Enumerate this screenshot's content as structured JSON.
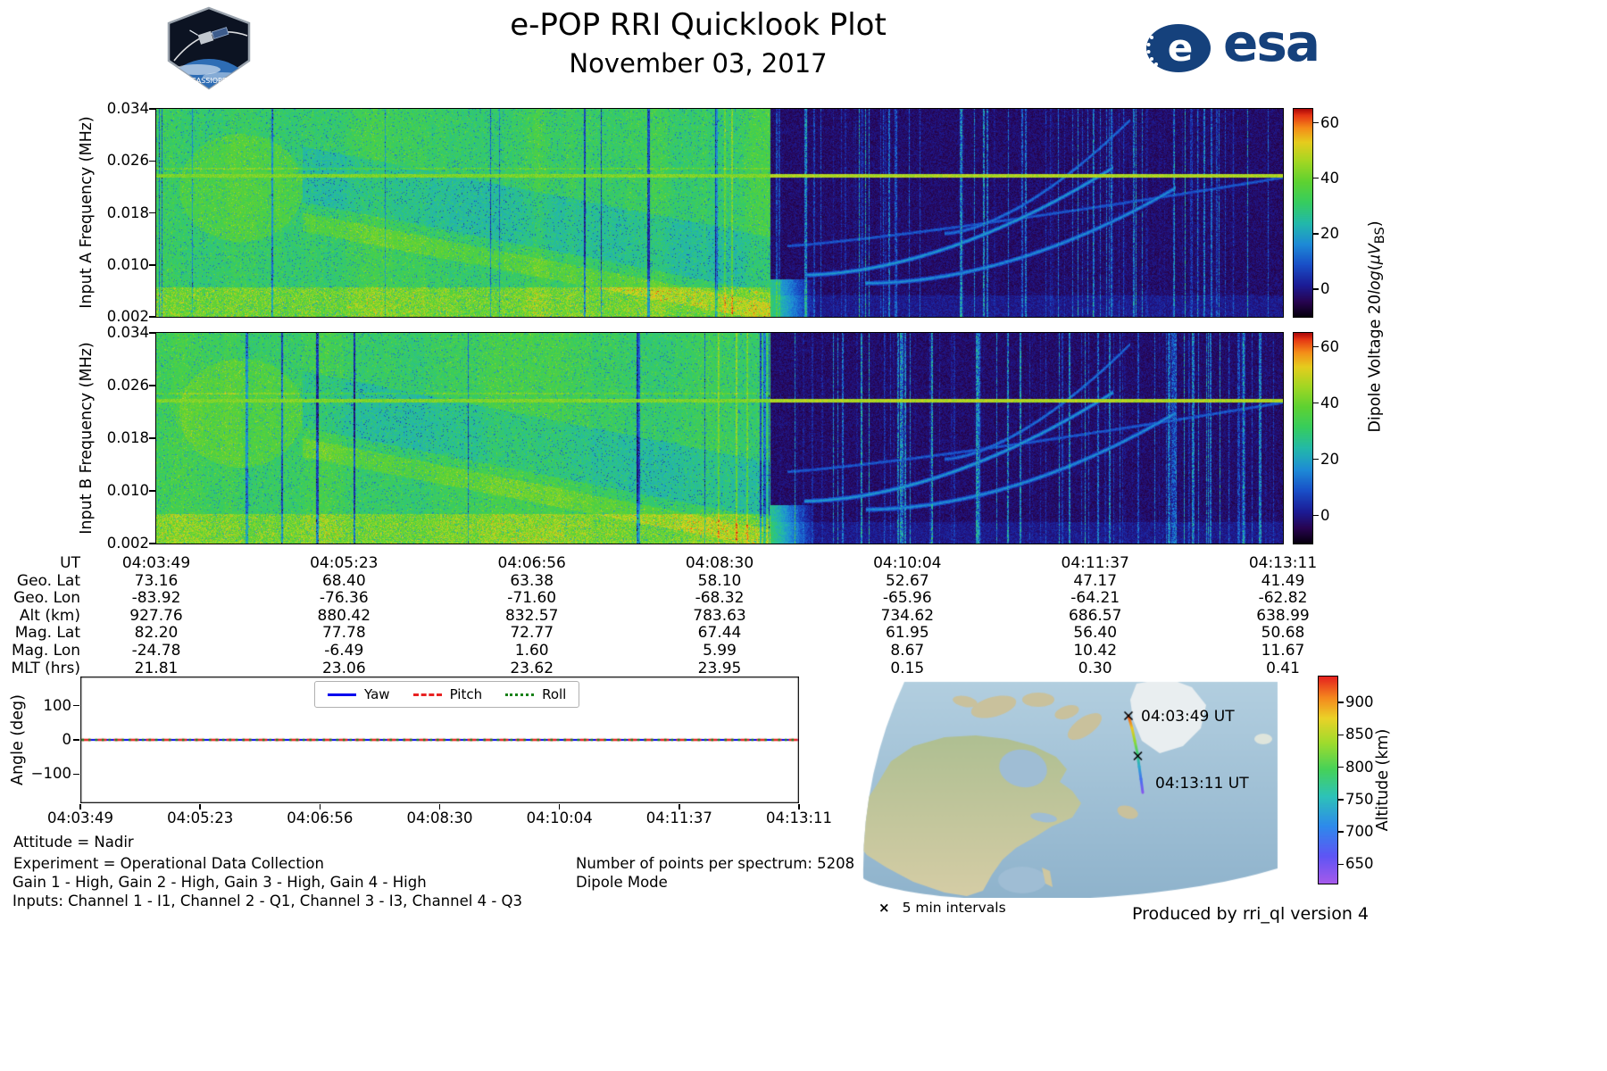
{
  "header": {
    "title": "e-POP RRI Quicklook Plot",
    "date": "November 03, 2017",
    "esa_wordmark": "esa",
    "patch_text": "CASSIOPE"
  },
  "colorbar_label": {
    "prefix": "Dipole Voltage 20",
    "log": "log",
    "open": "(",
    "muv": "μV",
    "sub": "BS",
    "close": ")"
  },
  "info": {
    "attitude": "Attitude = Nadir",
    "experiment": "Experiment = Operational Data Collection",
    "gains": "Gain 1 - High, Gain 2 - High, Gain 3 - High, Gain 4 - High",
    "inputs": "Inputs: Channel 1 - I1, Channel 2 - Q1, Channel 3 - I3, Channel 4 - Q3",
    "points_per_spectrum": "Number of points per spectrum: 5208",
    "mode": "Dipole Mode",
    "produced_by": "Produced by rri_ql version 4"
  },
  "chart_data": [
    {
      "id": "spectrogram_a",
      "type": "heatmap",
      "ylabel": "Input A Frequency (MHz)",
      "yticks": [
        "0.034",
        "0.026",
        "0.018",
        "0.010",
        "0.002"
      ],
      "ylim_mhz": [
        0.002,
        0.034
      ],
      "x_range_ut": [
        "04:03:49",
        "04:13:11"
      ],
      "colorbar_ticks": [
        60,
        40,
        20,
        0
      ],
      "colorbar_range": [
        -10,
        65
      ],
      "features": {
        "active_region_end_fraction": 0.545,
        "carrier_line_mhz": 0.0237,
        "description": "Broadband HF noise (~25-40 dB, green) until ~04:08:50 UT, then dark background with vertical interference streaks and rising ionogram traces; persistent carrier line near 0.024 MHz across full interval."
      }
    },
    {
      "id": "spectrogram_b",
      "type": "heatmap",
      "ylabel": "Input B Frequency (MHz)",
      "yticks": [
        "0.034",
        "0.026",
        "0.018",
        "0.010",
        "0.002"
      ],
      "ylim_mhz": [
        0.002,
        0.034
      ],
      "x_range_ut": [
        "04:03:49",
        "04:13:11"
      ],
      "colorbar_ticks": [
        60,
        40,
        20,
        0
      ],
      "colorbar_range": [
        -10,
        65
      ],
      "features": {
        "active_region_end_fraction": 0.545,
        "carrier_line_mhz": 0.0237,
        "description": "Same structure as Input A: bright broadband region, then dark region with streaks, carrier line near 0.024 MHz."
      }
    },
    {
      "id": "attitude_angles",
      "type": "line",
      "ylabel": "Angle (deg)",
      "x": [
        "04:03:49",
        "04:05:23",
        "04:06:56",
        "04:08:30",
        "04:10:04",
        "04:11:37",
        "04:13:11"
      ],
      "yticks": [
        100,
        0,
        -100
      ],
      "ytick_labels": [
        "100",
        "0",
        "−100"
      ],
      "ylim": [
        -185,
        185
      ],
      "legend_position": "top center",
      "series": [
        {
          "name": "Yaw",
          "values": [
            0,
            0,
            0,
            0,
            0,
            0,
            0
          ],
          "color": "#0000ee",
          "style": "solid"
        },
        {
          "name": "Pitch",
          "values": [
            0,
            0,
            0,
            0,
            0,
            0,
            0
          ],
          "color": "#e82222",
          "style": "dashed"
        },
        {
          "name": "Roll",
          "values": [
            0,
            0,
            0,
            0,
            0,
            0,
            0
          ],
          "color": "#178017",
          "style": "dotted"
        }
      ]
    },
    {
      "id": "ephemeris",
      "type": "table",
      "row_labels": [
        "UT",
        "Geo. Lat",
        "Geo. Lon",
        "Alt (km)",
        "Mag. Lat",
        "Mag. Lon",
        "MLT (hrs)"
      ],
      "columns": [
        [
          "04:03:49",
          "73.16",
          "-83.92",
          "927.76",
          "82.20",
          "-24.78",
          "21.81"
        ],
        [
          "04:05:23",
          "68.40",
          "-76.36",
          "880.42",
          "77.78",
          "-6.49",
          "23.06"
        ],
        [
          "04:06:56",
          "63.38",
          "-71.60",
          "832.57",
          "72.77",
          "1.60",
          "23.62"
        ],
        [
          "04:08:30",
          "58.10",
          "-68.32",
          "783.63",
          "67.44",
          "5.99",
          "23.95"
        ],
        [
          "04:10:04",
          "52.67",
          "-65.96",
          "734.62",
          "61.95",
          "8.67",
          "0.15"
        ],
        [
          "04:11:37",
          "47.17",
          "-64.21",
          "686.57",
          "56.40",
          "10.42",
          "0.30"
        ],
        [
          "04:13:11",
          "41.49",
          "-62.82",
          "638.99",
          "50.68",
          "11.67",
          "0.41"
        ]
      ]
    },
    {
      "id": "ground_track",
      "type": "map",
      "start_label": "04:03:49 UT",
      "end_label": "04:13:11 UT",
      "marker_symbol": "×",
      "marker_note": "5 min intervals",
      "colorbar": {
        "label": "Altitude (km)",
        "ticks": [
          900,
          850,
          800,
          750,
          700,
          650
        ],
        "range": [
          620,
          940
        ]
      },
      "track": [
        {
          "ut": "04:03:49",
          "geo_lat": 73.16,
          "geo_lon": -83.92,
          "alt_km": 927.76
        },
        {
          "ut": "04:05:23",
          "geo_lat": 68.4,
          "geo_lon": -76.36,
          "alt_km": 880.42
        },
        {
          "ut": "04:06:56",
          "geo_lat": 63.38,
          "geo_lon": -71.6,
          "alt_km": 832.57
        },
        {
          "ut": "04:08:30",
          "geo_lat": 58.1,
          "geo_lon": -68.32,
          "alt_km": 783.63
        },
        {
          "ut": "04:10:04",
          "geo_lat": 52.67,
          "geo_lon": -65.96,
          "alt_km": 734.62
        },
        {
          "ut": "04:11:37",
          "geo_lat": 47.17,
          "geo_lon": -64.21,
          "alt_km": 686.57
        },
        {
          "ut": "04:13:11",
          "geo_lat": 41.49,
          "geo_lon": -62.82,
          "alt_km": 638.99
        }
      ]
    }
  ]
}
